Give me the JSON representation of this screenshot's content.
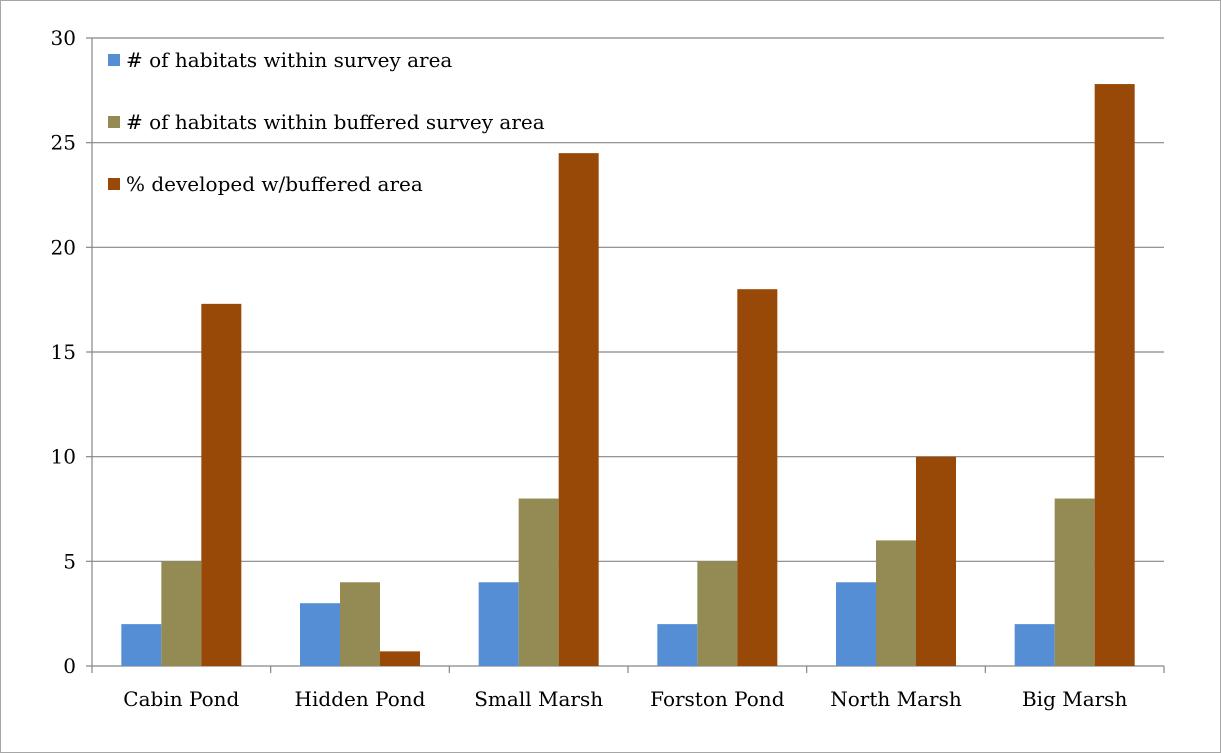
{
  "chart_data": {
    "type": "bar",
    "categories": [
      "Cabin Pond",
      "Hidden Pond",
      "Small Marsh",
      "Forston Pond",
      "North Marsh",
      "Big Marsh"
    ],
    "series": [
      {
        "name": "# of habitats within survey area",
        "color": "#558ed5",
        "values": [
          2,
          3,
          4,
          2,
          4,
          2
        ]
      },
      {
        "name": "# of habitats within buffered survey area",
        "color": "#948a54",
        "values": [
          5,
          4,
          8,
          5,
          6,
          8
        ]
      },
      {
        "name": "% developed w/buffered area",
        "color": "#984807",
        "values": [
          17.3,
          0.7,
          24.5,
          18,
          10,
          27.8
        ]
      }
    ],
    "ylim": [
      0,
      30
    ],
    "yticks": [
      0,
      5,
      10,
      15,
      20,
      25,
      30
    ],
    "grid": true,
    "legend": "top-left"
  }
}
